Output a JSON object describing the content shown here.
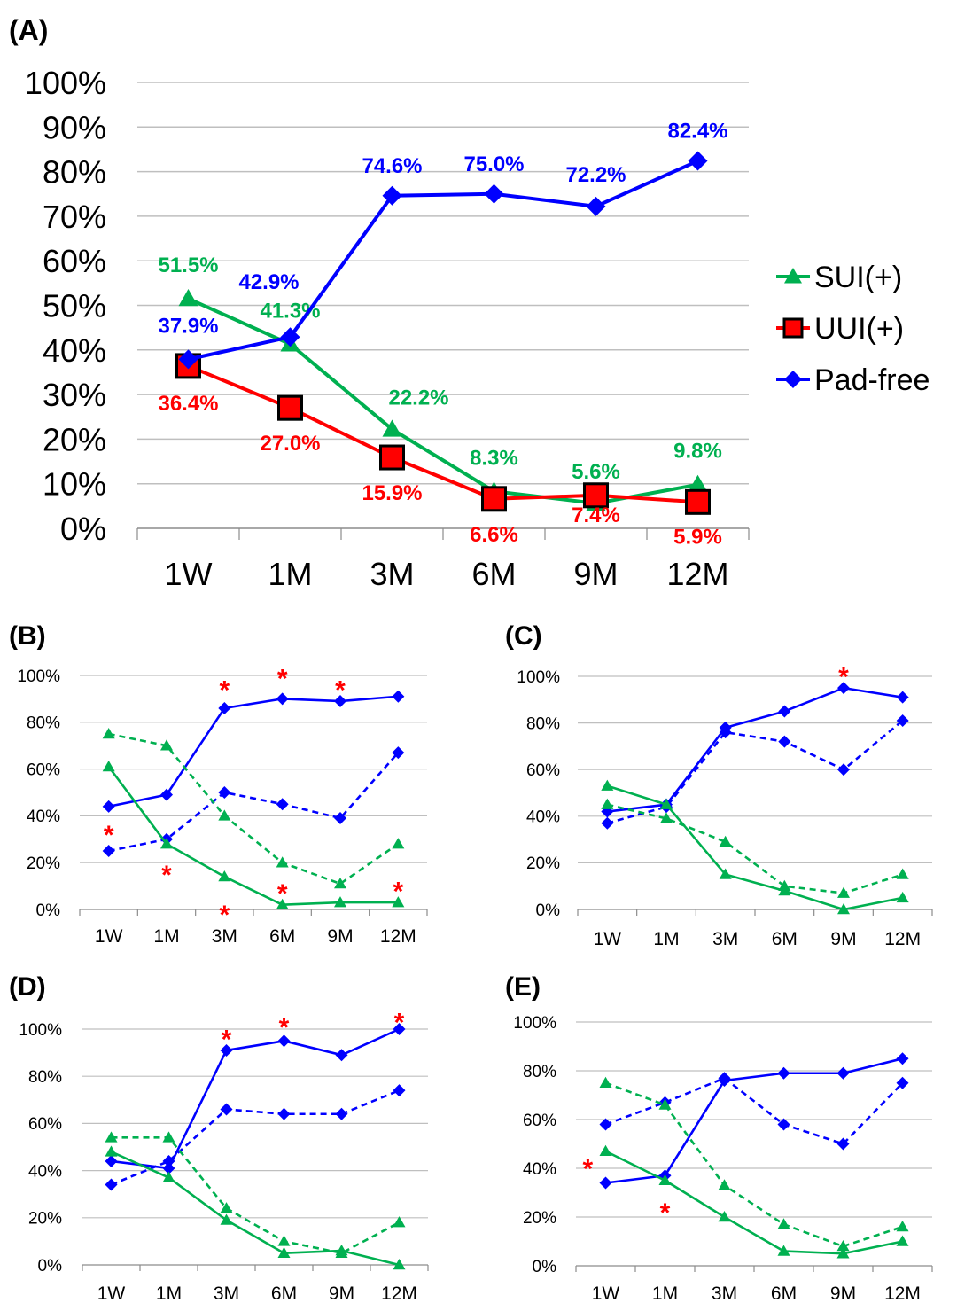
{
  "colors": {
    "sui": "#00b050",
    "uui": "#ff0000",
    "uui_marker": "#ff0000",
    "padfree": "#0000ff",
    "grid": "#bfbfbf",
    "star": "#ff0000"
  },
  "chart_data": [
    {
      "panel": "(A)",
      "type": "line",
      "categories": [
        "1W",
        "1M",
        "3M",
        "6M",
        "9M",
        "12M"
      ],
      "y_ticks": [
        "0%",
        "10%",
        "20%",
        "30%",
        "40%",
        "50%",
        "60%",
        "70%",
        "80%",
        "90%",
        "100%"
      ],
      "ylim": [
        0,
        100
      ],
      "grid": true,
      "legend": "right",
      "series": [
        {
          "name": "SUI(+)",
          "marker": "triangle",
          "values": [
            51.5,
            41.3,
            22.2,
            8.3,
            5.6,
            9.8
          ],
          "labels": [
            "51.5%",
            "41.3%",
            "22.2%",
            "8.3%",
            "5.6%",
            "9.8%"
          ]
        },
        {
          "name": "UUI(+)",
          "marker": "square",
          "values": [
            36.4,
            27.0,
            15.9,
            6.6,
            7.4,
            5.9
          ],
          "labels": [
            "36.4%",
            "27.0%",
            "15.9%",
            "6.6%",
            "7.4%",
            "5.9%"
          ]
        },
        {
          "name": "Pad-free",
          "marker": "diamond",
          "values": [
            37.9,
            42.9,
            74.6,
            75.0,
            72.2,
            82.4
          ],
          "labels": [
            "37.9%",
            "42.9%",
            "74.6%",
            "75.0%",
            "72.2%",
            "82.4%"
          ]
        }
      ]
    },
    {
      "panel": "(B)",
      "type": "line",
      "categories": [
        "1W",
        "1M",
        "3M",
        "6M",
        "9M",
        "12M"
      ],
      "y_ticks": [
        "0%",
        "20%",
        "40%",
        "60%",
        "80%",
        "100%"
      ],
      "ylim": [
        0,
        100
      ],
      "grid": true,
      "series": [
        {
          "kind": "padfree",
          "style": "solid",
          "values": [
            44,
            49,
            86,
            90,
            89,
            91
          ]
        },
        {
          "kind": "padfree",
          "style": "dashed",
          "values": [
            25,
            30,
            50,
            45,
            39,
            67
          ]
        },
        {
          "kind": "sui",
          "style": "solid",
          "values": [
            61,
            28,
            14,
            2,
            3,
            3
          ]
        },
        {
          "kind": "sui",
          "style": "dashed",
          "values": [
            75,
            70,
            40,
            20,
            11,
            28
          ]
        }
      ],
      "significance": [
        {
          "x": 0,
          "y": 34,
          "text": "*"
        },
        {
          "x": 1,
          "y": 17,
          "text": "*"
        },
        {
          "x": 2,
          "y": 96,
          "text": "*"
        },
        {
          "x": 2,
          "y": 0,
          "text": "*"
        },
        {
          "x": 3,
          "y": 101,
          "text": "*"
        },
        {
          "x": 3,
          "y": 9,
          "text": "*"
        },
        {
          "x": 4,
          "y": 96,
          "text": "*"
        },
        {
          "x": 5,
          "y": 10,
          "text": "*"
        }
      ]
    },
    {
      "panel": "(C)",
      "type": "line",
      "categories": [
        "1W",
        "1M",
        "3M",
        "6M",
        "9M",
        "12M"
      ],
      "y_ticks": [
        "0%",
        "20%",
        "40%",
        "60%",
        "80%",
        "100%"
      ],
      "ylim": [
        0,
        100
      ],
      "grid": true,
      "series": [
        {
          "kind": "padfree",
          "style": "solid",
          "values": [
            42,
            45,
            78,
            85,
            95,
            91
          ]
        },
        {
          "kind": "padfree",
          "style": "dashed",
          "values": [
            37,
            44,
            76,
            72,
            60,
            81
          ]
        },
        {
          "kind": "sui",
          "style": "solid",
          "values": [
            53,
            45,
            15,
            8,
            0,
            5
          ]
        },
        {
          "kind": "sui",
          "style": "dashed",
          "values": [
            45,
            39,
            29,
            10,
            7,
            15
          ]
        }
      ],
      "significance": [
        {
          "x": 4,
          "y": 102,
          "text": "*"
        }
      ]
    },
    {
      "panel": "(D)",
      "type": "line",
      "categories": [
        "1W",
        "1M",
        "3M",
        "6M",
        "9M",
        "12M"
      ],
      "y_ticks": [
        "0%",
        "20%",
        "40%",
        "60%",
        "80%",
        "100%"
      ],
      "ylim": [
        0,
        100
      ],
      "grid": true,
      "series": [
        {
          "kind": "padfree",
          "style": "solid",
          "values": [
            44,
            41,
            91,
            95,
            89,
            100
          ]
        },
        {
          "kind": "padfree",
          "style": "dashed",
          "values": [
            34,
            44,
            66,
            64,
            64,
            74
          ]
        },
        {
          "kind": "sui",
          "style": "solid",
          "values": [
            48,
            37,
            19,
            5,
            6,
            0
          ]
        },
        {
          "kind": "sui",
          "style": "dashed",
          "values": [
            54,
            54,
            24,
            10,
            5,
            18
          ]
        }
      ],
      "significance": [
        {
          "x": 2,
          "y": 98,
          "text": "*"
        },
        {
          "x": 3,
          "y": 103,
          "text": "*"
        },
        {
          "x": 5,
          "y": 105,
          "text": "*"
        }
      ]
    },
    {
      "panel": "(E)",
      "type": "line",
      "categories": [
        "1W",
        "1M",
        "3M",
        "6M",
        "9M",
        "12M"
      ],
      "y_ticks": [
        "0%",
        "20%",
        "40%",
        "60%",
        "80%",
        "100%"
      ],
      "ylim": [
        0,
        100
      ],
      "grid": true,
      "series": [
        {
          "kind": "padfree",
          "style": "solid",
          "values": [
            34,
            37,
            76,
            79,
            79,
            85
          ]
        },
        {
          "kind": "padfree",
          "style": "dashed",
          "values": [
            58,
            67,
            77,
            58,
            50,
            75
          ]
        },
        {
          "kind": "sui",
          "style": "solid",
          "values": [
            47,
            35,
            20,
            6,
            5,
            10
          ]
        },
        {
          "kind": "sui",
          "style": "dashed",
          "values": [
            75,
            66,
            33,
            17,
            8,
            16
          ]
        }
      ],
      "significance": [
        {
          "x": -0.3,
          "y": 42,
          "text": "*"
        },
        {
          "x": 1,
          "y": 24,
          "text": "*"
        }
      ]
    }
  ]
}
